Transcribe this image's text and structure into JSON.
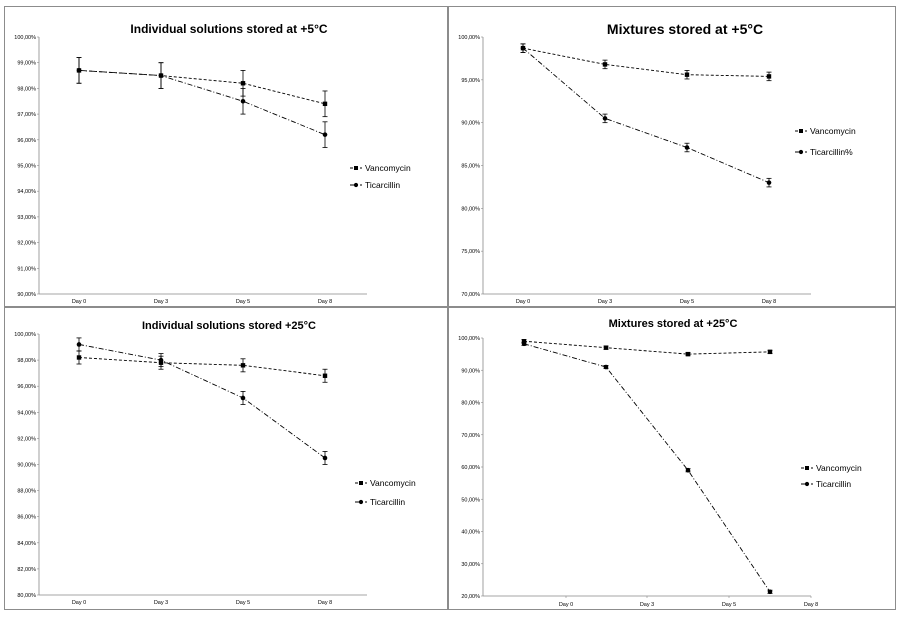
{
  "chart_data": [
    {
      "type": "line",
      "title": "Individual solutions stored at +5°C",
      "categories": [
        "Day 0",
        "Day 3",
        "Day 5",
        "Day 8"
      ],
      "y_ticks": [
        "90,00%",
        "91,00%",
        "92,00%",
        "93,00%",
        "94,00%",
        "95,00%",
        "96,00%",
        "97,00%",
        "98,00%",
        "99,00%",
        "100,00%"
      ],
      "ylim": [
        90,
        100
      ],
      "grid": false,
      "legend_position": "right",
      "series": [
        {
          "name": "Vancomycin",
          "values": [
            98.7,
            98.5,
            98.2,
            97.4
          ],
          "errors": [
            0.5,
            0.5,
            0.5,
            0.5
          ],
          "marker": "square",
          "dash": "3,2"
        },
        {
          "name": "Ticarcillin",
          "values": [
            98.7,
            98.5,
            97.5,
            96.2
          ],
          "errors": [
            0.5,
            0.5,
            0.5,
            0.5
          ],
          "marker": "circle",
          "dash": "5,2,1,2"
        }
      ]
    },
    {
      "type": "line",
      "title": "Mixtures stored at +5°C",
      "categories": [
        "Day 0",
        "Day 3",
        "Day 5",
        "Day 8"
      ],
      "y_ticks": [
        "70,00%",
        "75,00%",
        "80,00%",
        "85,00%",
        "90,00%",
        "95,00%",
        "100,00%"
      ],
      "ylim": [
        70,
        100
      ],
      "grid": false,
      "legend_position": "right",
      "series": [
        {
          "name": "Vancomycin",
          "values": [
            98.7,
            96.8,
            95.6,
            95.4
          ],
          "errors": [
            0.5,
            0.5,
            0.5,
            0.5
          ],
          "marker": "square",
          "dash": "3,2"
        },
        {
          "name": "Ticarcillin%",
          "values": [
            98.7,
            90.5,
            87.1,
            83.0
          ],
          "errors": [
            0.5,
            0.5,
            0.5,
            0.5
          ],
          "marker": "circle",
          "dash": "5,2,1,2"
        }
      ]
    },
    {
      "type": "line",
      "title": "Individual solutions stored +25°C",
      "categories": [
        "Day 0",
        "Day 3",
        "Day 5",
        "Day 8"
      ],
      "y_ticks": [
        "80,00%",
        "82,00%",
        "84,00%",
        "86,00%",
        "88,00%",
        "90,00%",
        "92,00%",
        "94,00%",
        "96,00%",
        "98,00%",
        "100,00%"
      ],
      "ylim": [
        80,
        100
      ],
      "grid": false,
      "legend_position": "right",
      "series": [
        {
          "name": "Vancomycin",
          "values": [
            98.2,
            97.8,
            97.6,
            96.8
          ],
          "errors": [
            0.5,
            0.5,
            0.5,
            0.5
          ],
          "marker": "square",
          "dash": "3,2"
        },
        {
          "name": "Ticarcillin",
          "values": [
            99.2,
            98.0,
            95.1,
            90.5
          ],
          "errors": [
            0.5,
            0.5,
            0.5,
            0.5
          ],
          "marker": "circle",
          "dash": "5,2,1,2"
        }
      ]
    },
    {
      "type": "line",
      "title": "Mixtures stored at +25°C",
      "categories": [
        "Day 0",
        "Day 3",
        "Day 5",
        "Day 8"
      ],
      "y_ticks": [
        "20,00%",
        "30,00%",
        "40,00%",
        "50,00%",
        "60,00%",
        "70,00%",
        "80,00%",
        "90,00%",
        "100,00%"
      ],
      "ylim": [
        20,
        100
      ],
      "grid": false,
      "legend_position": "right",
      "series": [
        {
          "name": "Vancomycin",
          "values": [
            99.0,
            97.0,
            95.0,
            95.7
          ],
          "errors": [
            0.5,
            0.5,
            0.5,
            0.5
          ],
          "marker": "square",
          "dash": "3,2"
        },
        {
          "name": "Ticarcillin",
          "values": [
            98.2,
            91.0,
            59.0,
            21.3
          ],
          "errors": [
            0.5,
            0.5,
            0.5,
            0.5
          ],
          "marker": "circle",
          "dash": "5,2,1,2"
        }
      ]
    }
  ]
}
